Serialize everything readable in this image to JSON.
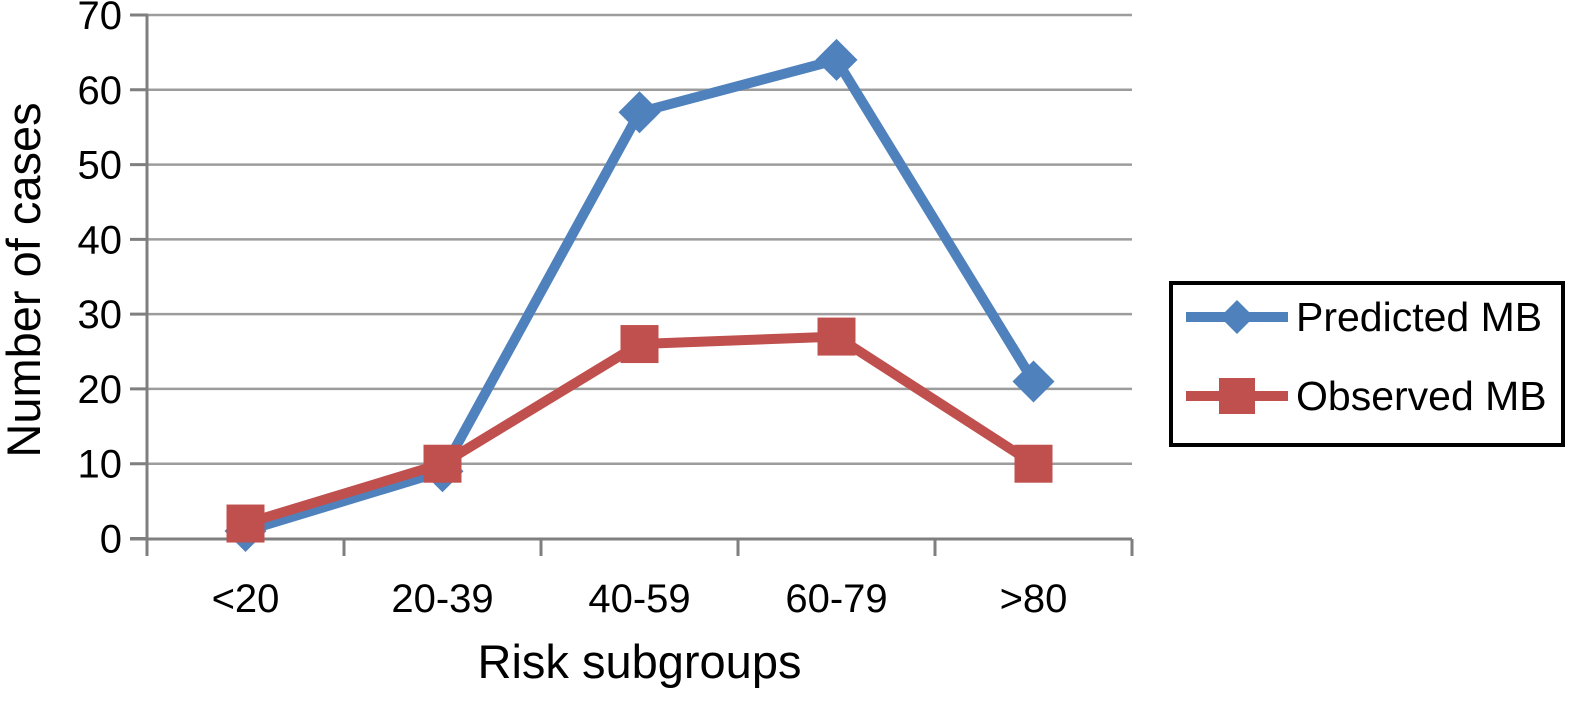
{
  "chart_data": {
    "type": "line",
    "title": "",
    "xlabel": "Risk subgroups",
    "ylabel": "Number of cases",
    "categories": [
      "<20",
      "20-39",
      "40-59",
      "60-79",
      ">80"
    ],
    "series": [
      {
        "name": "Predicted MB",
        "values": [
          1,
          9,
          57,
          64,
          21
        ],
        "color": "#4F81BD",
        "marker": "diamond"
      },
      {
        "name": "Observed MB",
        "values": [
          2,
          10,
          26,
          27,
          10
        ],
        "color": "#C0504D",
        "marker": "square"
      }
    ],
    "ylim": [
      0,
      70
    ],
    "yticks": [
      0,
      10,
      20,
      30,
      40,
      50,
      60,
      70
    ],
    "grid": true,
    "legend_position": "right",
    "colors": {
      "gridline": "#9c9c9c",
      "axis": "#7f7f7f",
      "text": "#000000",
      "background": "#ffffff",
      "legend_border": "#000000",
      "legend_fill": "#ffffff"
    }
  }
}
